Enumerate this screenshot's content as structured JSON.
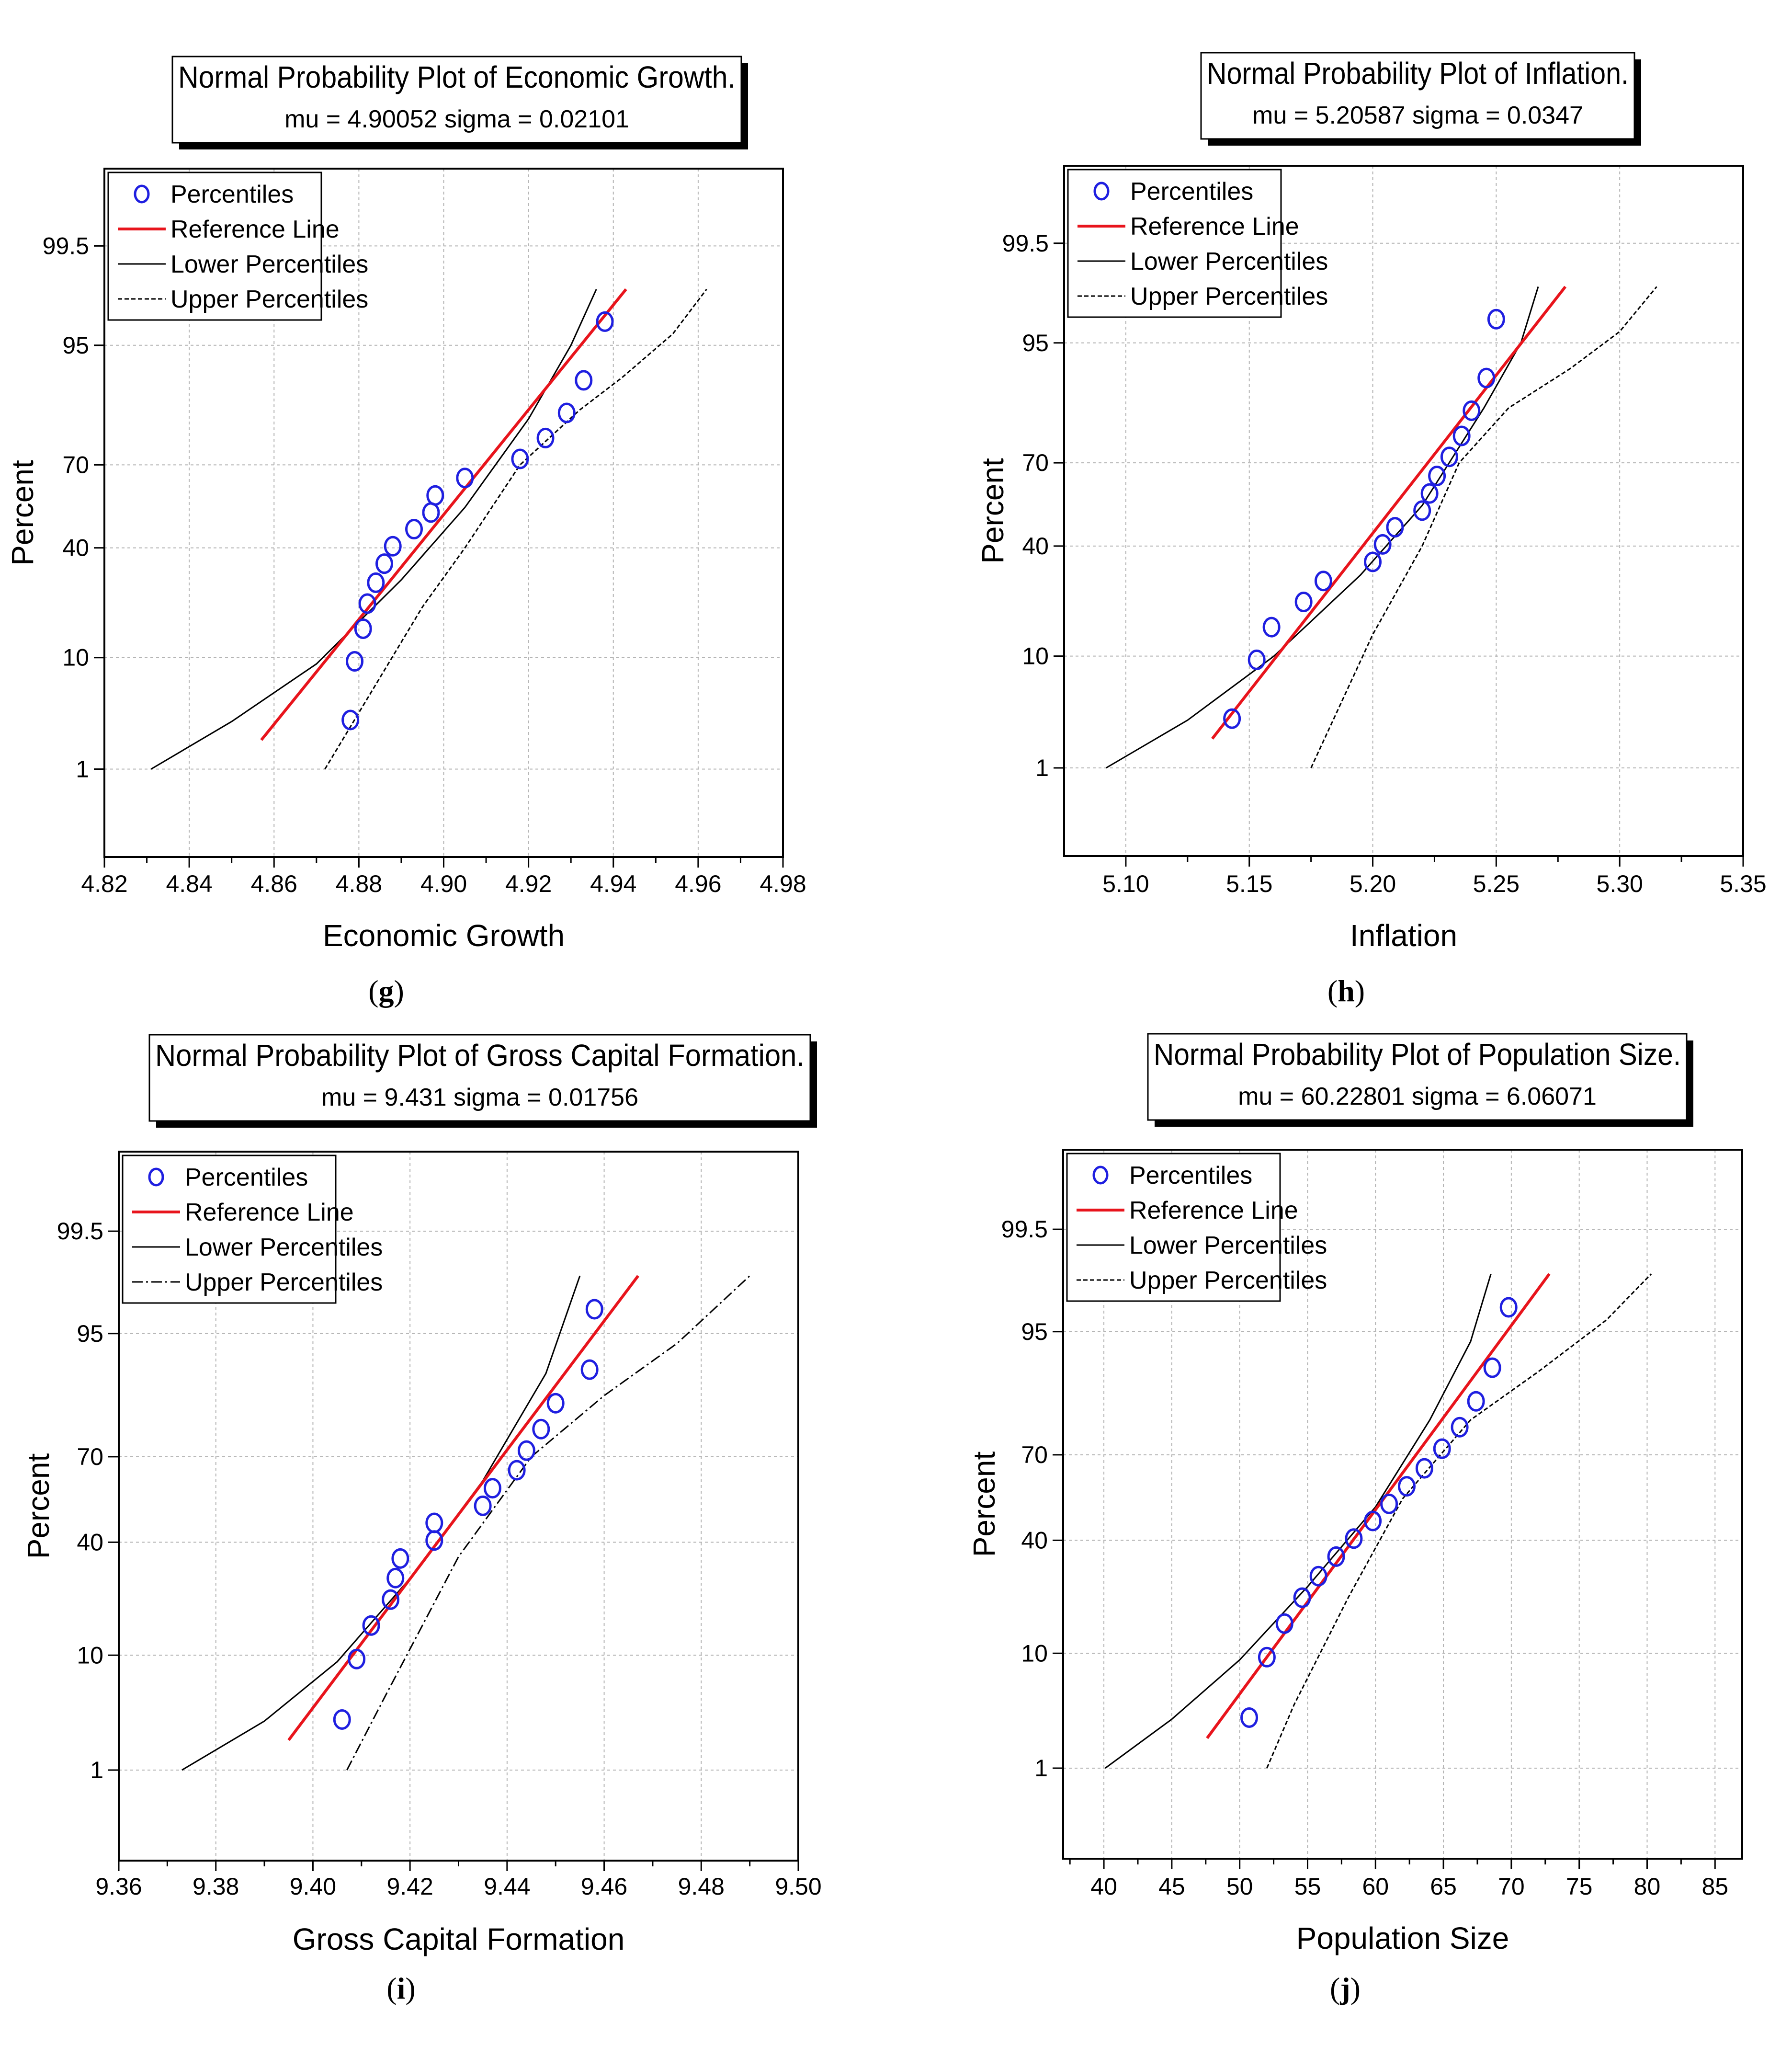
{
  "chart_data": [
    {
      "type": "scatter",
      "panel": "(g)",
      "panel_letter": "g",
      "title": "Normal Probability Plot of Economic Growth.",
      "subtitle": "mu = 4.90052  sigma = 0.02101",
      "mu": 4.90052,
      "sigma": 0.02101,
      "xlabel": "Economic Growth",
      "ylabel": "Percent",
      "xlim": [
        4.82,
        4.98
      ],
      "x_ticks": [
        "4.82",
        "4.84",
        "4.86",
        "4.88",
        "4.90",
        "4.92",
        "4.94",
        "4.96",
        "4.98"
      ],
      "y_ticks": [
        "1",
        "10",
        "40",
        "70",
        "95",
        "99.5"
      ],
      "legend": [
        {
          "label": "Percentiles",
          "style": "marker"
        },
        {
          "label": "Reference Line",
          "style": "red"
        },
        {
          "label": "Lower Percentiles",
          "style": "solid"
        },
        {
          "label": "Upper Percentiles",
          "style": "dashed"
        }
      ],
      "reference_line": {
        "x_start": 4.857,
        "y_start": 2,
        "x_end": 4.943,
        "y_end": 98.5
      },
      "lower_percentiles": {
        "x": [
          4.831,
          4.85,
          4.87,
          4.89,
          4.905,
          4.92,
          4.93,
          4.936
        ],
        "y": [
          1,
          3,
          9,
          29,
          55,
          83,
          95,
          98.5
        ]
      },
      "upper_percentiles": {
        "x": [
          4.872,
          4.895,
          4.905,
          4.918,
          4.932,
          4.942,
          4.954,
          4.962
        ],
        "y": [
          1,
          21,
          40,
          70,
          85,
          91,
          96,
          98.5
        ]
      },
      "percentiles": {
        "x": [
          4.878,
          4.879,
          4.881,
          4.882,
          4.884,
          4.886,
          4.888,
          4.893,
          4.897,
          4.898,
          4.905,
          4.918,
          4.924,
          4.929,
          4.933,
          4.938
        ],
        "y": [
          3.1,
          9.4,
          15.6,
          21.9,
          28.1,
          34.4,
          40.6,
          46.9,
          53.1,
          59.4,
          65.6,
          71.9,
          78.1,
          84.4,
          90.6,
          96.9
        ]
      }
    },
    {
      "type": "scatter",
      "panel": "(h)",
      "panel_letter": "h",
      "title": "Normal Probability Plot of Inflation.",
      "subtitle": "mu = 5.20587  sigma = 0.0347",
      "mu": 5.20587,
      "sigma": 0.0347,
      "xlabel": "Inflation",
      "ylabel": "Percent",
      "xlim": [
        5.075,
        5.35
      ],
      "x_ticks": [
        "5.10",
        "5.15",
        "5.20",
        "5.25",
        "5.30",
        "5.35"
      ],
      "y_ticks": [
        "1",
        "10",
        "40",
        "70",
        "95",
        "99.5"
      ],
      "legend": [
        {
          "label": "Percentiles",
          "style": "marker"
        },
        {
          "label": "Reference Line",
          "style": "red"
        },
        {
          "label": "Lower Percentiles",
          "style": "solid"
        },
        {
          "label": "Upper Percentiles",
          "style": "dashed"
        }
      ],
      "reference_line": {
        "x_start": 5.135,
        "y_start": 2,
        "x_end": 5.278,
        "y_end": 98.5
      },
      "lower_percentiles": {
        "x": [
          5.092,
          5.125,
          5.16,
          5.195,
          5.22,
          5.245,
          5.26,
          5.267
        ],
        "y": [
          1,
          3,
          10,
          30,
          55,
          85,
          95,
          98.5
        ]
      },
      "upper_percentiles": {
        "x": [
          5.175,
          5.2,
          5.22,
          5.235,
          5.255,
          5.28,
          5.3,
          5.315
        ],
        "y": [
          1,
          14,
          40,
          70,
          85,
          92,
          96,
          98.5
        ]
      },
      "percentiles": {
        "x": [
          5.143,
          5.153,
          5.159,
          5.172,
          5.18,
          5.2,
          5.204,
          5.209,
          5.22,
          5.223,
          5.226,
          5.231,
          5.236,
          5.24,
          5.246,
          5.25
        ],
        "y": [
          3.1,
          9.4,
          15.6,
          21.9,
          28.1,
          34.4,
          40.6,
          46.9,
          53.1,
          59.4,
          65.6,
          71.9,
          78.1,
          84.4,
          90.6,
          96.9
        ]
      }
    },
    {
      "type": "scatter",
      "panel": "(i)",
      "panel_letter": "i",
      "title": "Normal Probability Plot of Gross Capital Formation.",
      "subtitle": "mu = 9.431  sigma = 0.01756",
      "mu": 9.431,
      "sigma": 0.01756,
      "xlabel": "Gross Capital Formation",
      "ylabel": "Percent",
      "xlim": [
        9.36,
        9.5
      ],
      "x_ticks": [
        "9.36",
        "9.38",
        "9.40",
        "9.42",
        "9.44",
        "9.46",
        "9.48",
        "9.50"
      ],
      "y_ticks": [
        "1",
        "10",
        "40",
        "70",
        "95",
        "99.5"
      ],
      "legend": [
        {
          "label": "Percentiles",
          "style": "marker"
        },
        {
          "label": "Reference Line",
          "style": "red"
        },
        {
          "label": "Lower Percentiles",
          "style": "solid"
        },
        {
          "label": "Upper Percentiles",
          "style": "dashdot"
        }
      ],
      "reference_line": {
        "x_start": 9.395,
        "y_start": 2,
        "x_end": 9.467,
        "y_end": 98.5
      },
      "lower_percentiles": {
        "x": [
          9.373,
          9.39,
          9.405,
          9.42,
          9.435,
          9.448,
          9.455
        ],
        "y": [
          1,
          3,
          9,
          28,
          62,
          90,
          98.5
        ]
      },
      "upper_percentiles": {
        "x": [
          9.407,
          9.415,
          9.43,
          9.445,
          9.46,
          9.475,
          9.49
        ],
        "y": [
          1,
          5,
          35,
          70,
          86,
          94,
          98.5
        ]
      },
      "percentiles": {
        "x": [
          9.406,
          9.409,
          9.412,
          9.416,
          9.417,
          9.418,
          9.425,
          9.425,
          9.435,
          9.437,
          9.442,
          9.444,
          9.447,
          9.45,
          9.457,
          9.458
        ],
        "y": [
          3.1,
          9.4,
          15.6,
          21.9,
          28.1,
          34.4,
          40.6,
          46.9,
          53.1,
          59.4,
          65.6,
          71.9,
          78.1,
          84.4,
          90.6,
          96.9
        ]
      }
    },
    {
      "type": "scatter",
      "panel": "(j)",
      "panel_letter": "j",
      "title": "Normal Probability Plot of Population Size.",
      "subtitle": "mu = 60.22801  sigma = 6.06071",
      "mu": 60.22801,
      "sigma": 6.06071,
      "xlabel": "Population Size",
      "ylabel": "Percent",
      "xlim": [
        37,
        87
      ],
      "x_ticks": [
        "40",
        "45",
        "50",
        "55",
        "60",
        "65",
        "70",
        "75",
        "80",
        "85"
      ],
      "y_ticks": [
        "1",
        "10",
        "40",
        "70",
        "95",
        "99.5"
      ],
      "legend": [
        {
          "label": "Percentiles",
          "style": "marker"
        },
        {
          "label": "Reference Line",
          "style": "red"
        },
        {
          "label": "Lower Percentiles",
          "style": "solid"
        },
        {
          "label": "Upper Percentiles",
          "style": "dashed"
        }
      ],
      "reference_line": {
        "x_start": 47.6,
        "y_start": 2,
        "x_end": 72.8,
        "y_end": 98.5
      },
      "lower_percentiles": {
        "x": [
          40.1,
          45,
          50,
          55,
          60,
          64,
          67,
          68.5
        ],
        "y": [
          1,
          3,
          9,
          25,
          52,
          80,
          94,
          98.5
        ]
      },
      "upper_percentiles": {
        "x": [
          52,
          54,
          58,
          62,
          67,
          72,
          77,
          80.3
        ],
        "y": [
          1,
          4,
          22,
          55,
          80,
          90,
          96,
          98.5
        ]
      },
      "percentiles": {
        "x": [
          50.7,
          52,
          53.3,
          54.6,
          55.8,
          57.1,
          58.4,
          59.8,
          61,
          62.3,
          63.6,
          64.9,
          66.2,
          67.4,
          68.6,
          69.8
        ],
        "y": [
          3.1,
          9.4,
          15.6,
          21.9,
          28.1,
          34.4,
          40.6,
          46.9,
          53.1,
          59.4,
          65.6,
          71.9,
          78.1,
          84.4,
          90.6,
          96.9
        ]
      }
    }
  ]
}
